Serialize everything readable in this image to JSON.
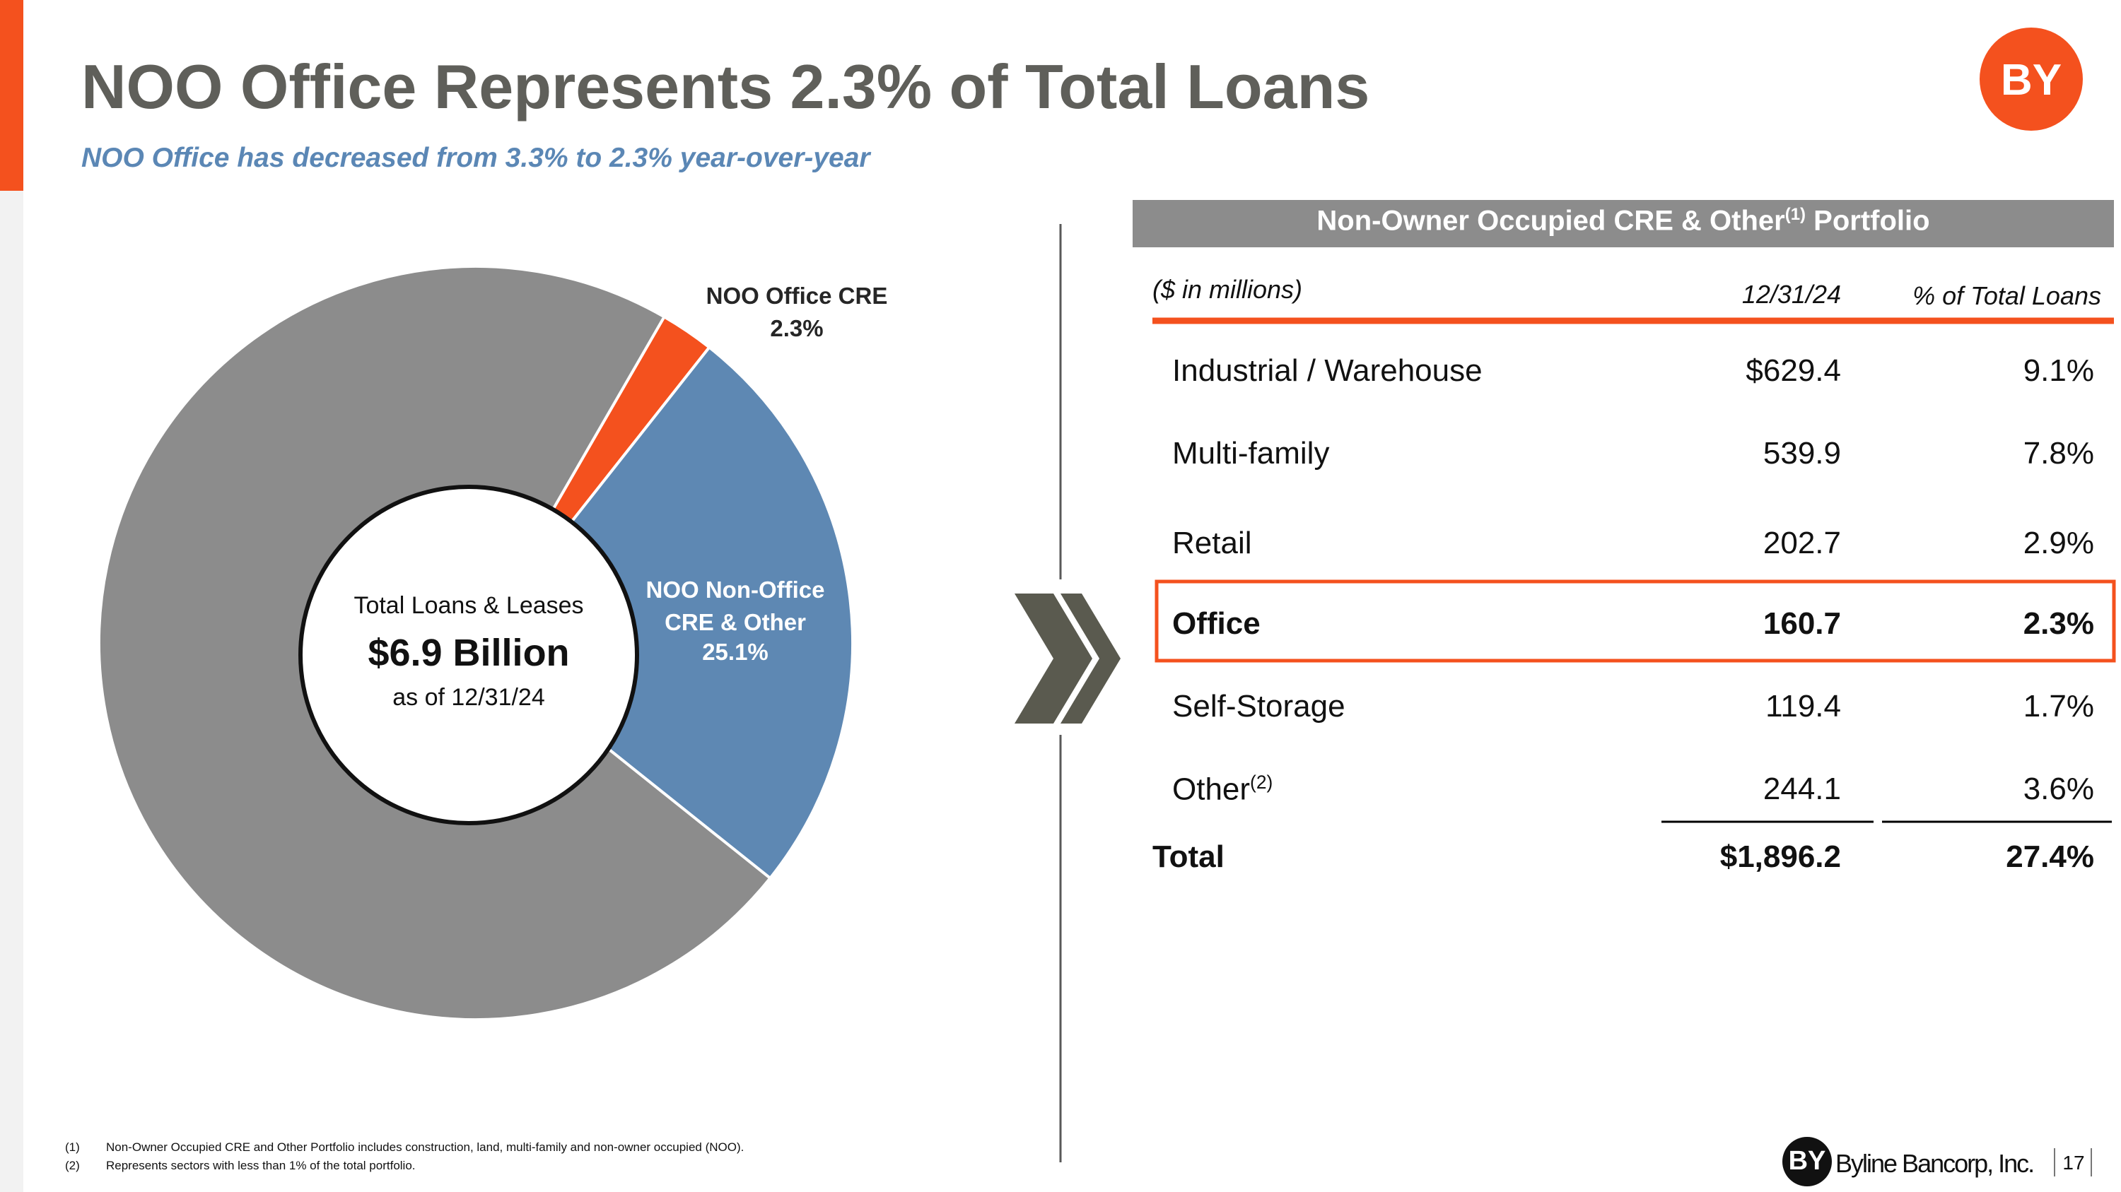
{
  "header": {
    "title": "NOO Office Represents 2.3% of Total Loans",
    "subtitle": "NOO Office has decreased from 3.3% to 2.3% year-over-year",
    "logo": "BY"
  },
  "chart_data": {
    "type": "pie",
    "labels": [
      "NOO Office CRE",
      "NOO Non-Office CRE & Other",
      null
    ],
    "values": [
      2.3,
      25.1,
      72.6
    ],
    "value_labels": [
      "2.3%",
      "25.1%",
      null
    ],
    "colors": [
      "#f4511e",
      "#5e88b3",
      "#8c8c8c"
    ],
    "label_colors": [
      "#262626",
      "#ffffff",
      null
    ],
    "center": {
      "line1": "Total Loans & Leases",
      "line2": "$6.9 Billion",
      "line3": "as of 12/31/24"
    }
  },
  "table": {
    "title": "Non-Owner Occupied CRE & Other",
    "title_note": "(1)",
    "title_end": " Portfolio",
    "columns": [
      "($ in millions)",
      "12/31/24",
      "% of Total Loans"
    ],
    "rows": [
      {
        "label": "Industrial / Warehouse",
        "note": null,
        "value": "$629.4",
        "pct": "9.1%",
        "highlight": false
      },
      {
        "label": "Multi-family",
        "note": null,
        "value": "539.9",
        "pct": "7.8%",
        "highlight": false
      },
      {
        "label": "Retail",
        "note": null,
        "value": "202.7",
        "pct": "2.9%",
        "highlight": false
      },
      {
        "label": "Office",
        "note": null,
        "value": "160.7",
        "pct": "2.3%",
        "highlight": true
      },
      {
        "label": "Self-Storage",
        "note": null,
        "value": "119.4",
        "pct": "1.7%",
        "highlight": false
      },
      {
        "label": "Other",
        "note": "(2)",
        "value": "244.1",
        "pct": "3.6%",
        "highlight": false
      }
    ],
    "total": {
      "label": "Total",
      "value": "$1,896.2",
      "pct": "27.4%"
    }
  },
  "footnotes": [
    {
      "mark": "(1)",
      "text": "Non-Owner Occupied CRE and Other Portfolio includes construction, land, multi-family and non-owner occupied (NOO)."
    },
    {
      "mark": "(2)",
      "text": "Represents sectors with less than 1% of the total portfolio."
    }
  ],
  "footer": {
    "logo": "BY",
    "company": "Byline Bancorp, Inc.",
    "page": "17"
  }
}
